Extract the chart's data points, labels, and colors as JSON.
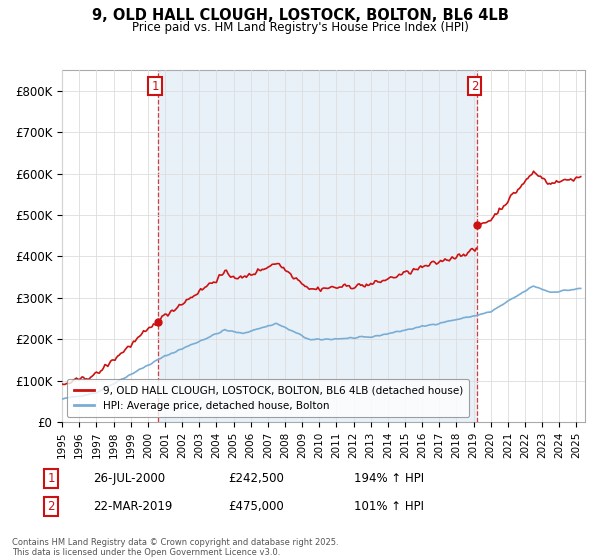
{
  "title_line1": "9, OLD HALL CLOUGH, LOSTOCK, BOLTON, BL6 4LB",
  "title_line2": "Price paid vs. HM Land Registry's House Price Index (HPI)",
  "ylim": [
    0,
    850000
  ],
  "yticks": [
    0,
    100000,
    200000,
    300000,
    400000,
    500000,
    600000,
    700000,
    800000
  ],
  "ytick_labels": [
    "£0",
    "£100K",
    "£200K",
    "£300K",
    "£400K",
    "£500K",
    "£600K",
    "£700K",
    "£800K"
  ],
  "hpi_color": "#7aadd4",
  "price_color": "#cc1111",
  "legend_label_price": "9, OLD HALL CLOUGH, LOSTOCK, BOLTON, BL6 4LB (detached house)",
  "legend_label_hpi": "HPI: Average price, detached house, Bolton",
  "footer_text": "Contains HM Land Registry data © Crown copyright and database right 2025.\nThis data is licensed under the Open Government Licence v3.0.",
  "background_color": "#ffffff",
  "grid_color": "#dddddd",
  "band_color": "#e8f0f8",
  "annotation_table": [
    {
      "num": "1",
      "date": "26-JUL-2000",
      "price": "£242,500",
      "hpi": "194% ↑ HPI"
    },
    {
      "num": "2",
      "date": "22-MAR-2019",
      "price": "£475,000",
      "hpi": "101% ↑ HPI"
    }
  ],
  "sale1_year": 2000.58,
  "sale1_price": 242500,
  "sale2_year": 2019.22,
  "sale2_price": 475000
}
